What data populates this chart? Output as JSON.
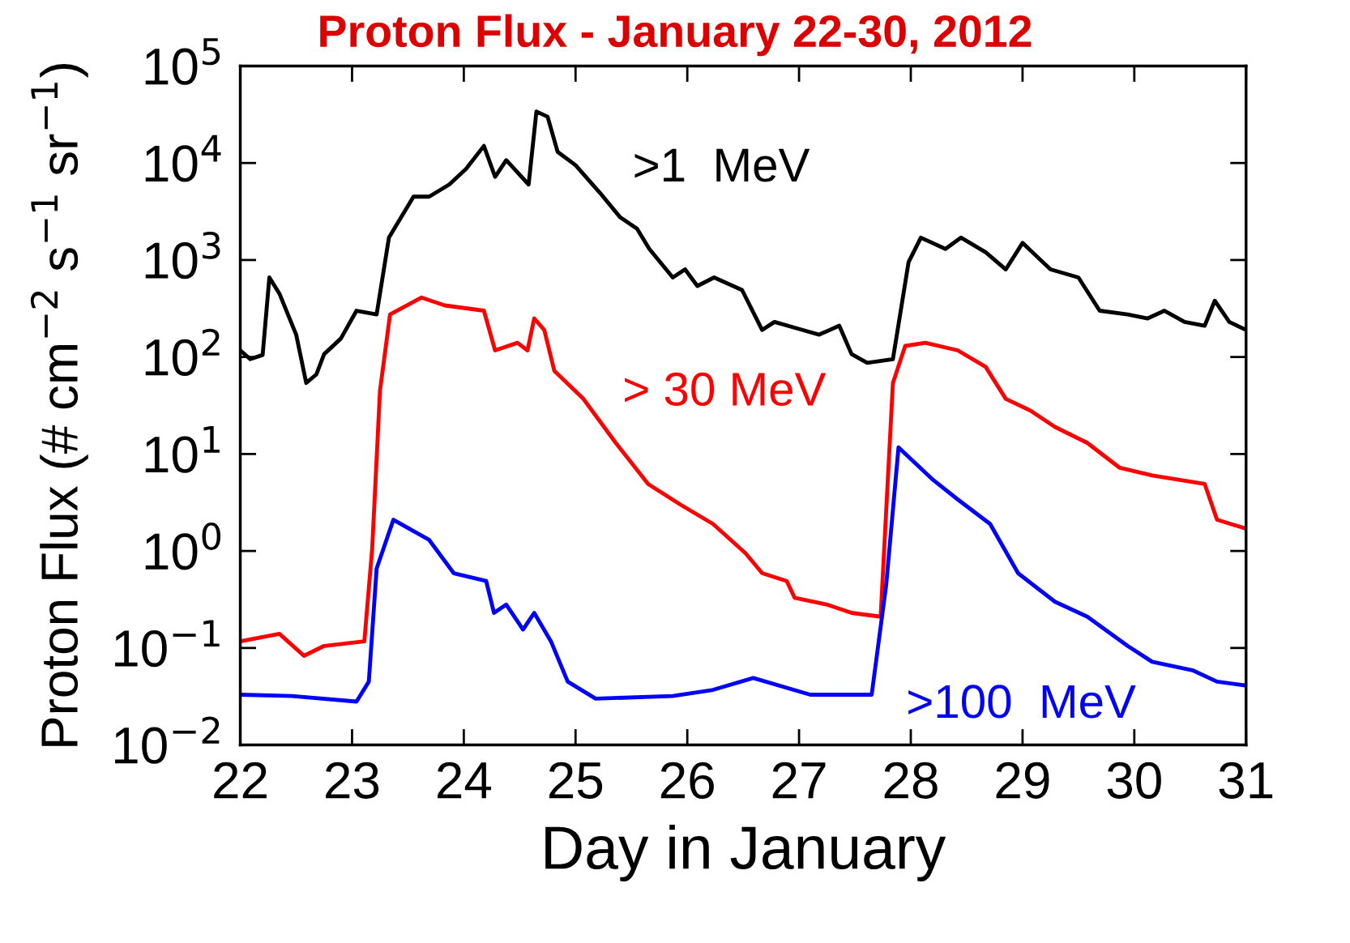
{
  "chart_data": {
    "type": "line",
    "title": "Proton Flux - January 22-30, 2012",
    "xlabel": "Day in January",
    "ylabel": "Proton Flux (# cm$^{−2}$ s$^{−1}$ sr$^{−1}$)",
    "log": "y",
    "grid": false,
    "legend": false,
    "marker": "none",
    "line_style": "solid",
    "xlim": [
      22,
      31
    ],
    "xticks": [
      22,
      23,
      24,
      25,
      26,
      27,
      28,
      29,
      30,
      31
    ],
    "ylim": [
      0.01,
      100000
    ],
    "yticks": [
      {
        "value": 0.01,
        "label": "10$^{−2}$"
      },
      {
        "value": 0.1,
        "label": "10$^{−1}$"
      },
      {
        "value": 1,
        "label": "10$^{0}$"
      },
      {
        "value": 10,
        "label": "10$^{1}$"
      },
      {
        "value": 100,
        "label": "10$^{2}$"
      },
      {
        "value": 1000,
        "label": "10$^{3}$"
      },
      {
        "value": 10000,
        "label": "10$^{4}$"
      },
      {
        "value": 100000,
        "label": "10$^{5}$"
      }
    ],
    "series": [
      {
        "name": ">1  MeV",
        "color": "#000000",
        "x": [
          22.0,
          22.09,
          22.2,
          22.26,
          22.35,
          22.5,
          22.59,
          22.68,
          22.75,
          22.9,
          23.04,
          23.22,
          23.33,
          23.55,
          23.69,
          23.87,
          24.02,
          24.18,
          24.28,
          24.38,
          24.58,
          24.65,
          24.75,
          24.84,
          25.0,
          25.22,
          25.4,
          25.55,
          25.66,
          25.87,
          25.98,
          26.09,
          26.24,
          26.49,
          26.67,
          26.78,
          27.03,
          27.18,
          27.36,
          27.47,
          27.61,
          27.84,
          27.98,
          28.09,
          28.31,
          28.45,
          28.67,
          28.85,
          29.0,
          29.25,
          29.5,
          29.69,
          29.94,
          30.12,
          30.27,
          30.45,
          30.63,
          30.72,
          30.85,
          31.0
        ],
        "values": [
          117,
          95,
          105,
          660,
          450,
          170,
          54,
          66,
          107,
          155,
          300,
          275,
          1700,
          4500,
          4500,
          6000,
          8700,
          15000,
          7200,
          10700,
          6000,
          34000,
          30000,
          13000,
          9500,
          4900,
          2750,
          2100,
          1300,
          660,
          800,
          540,
          660,
          490,
          190,
          230,
          190,
          170,
          210,
          107,
          87,
          95,
          950,
          1700,
          1300,
          1700,
          1200,
          800,
          1500,
          800,
          660,
          300,
          275,
          250,
          300,
          230,
          210,
          380,
          230,
          190
        ]
      },
      {
        "name": "> 30 MeV",
        "color": "#ff0000",
        "x": [
          22.0,
          22.35,
          22.57,
          22.75,
          23.11,
          23.18,
          23.25,
          23.34,
          23.62,
          23.83,
          24.18,
          24.28,
          24.48,
          24.57,
          24.63,
          24.72,
          24.81,
          25.07,
          25.36,
          25.65,
          25.94,
          26.23,
          26.52,
          26.67,
          26.89,
          26.96,
          27.25,
          27.47,
          27.73,
          27.84,
          27.95,
          28.13,
          28.42,
          28.67,
          28.85,
          29.07,
          29.29,
          29.58,
          29.87,
          30.16,
          30.63,
          30.74,
          31.0
        ],
        "values": [
          0.117,
          0.14,
          0.083,
          0.105,
          0.117,
          1.05,
          45,
          275,
          410,
          340,
          300,
          117,
          140,
          117,
          250,
          190,
          72,
          37,
          13,
          4.9,
          3.0,
          1.9,
          0.95,
          0.59,
          0.49,
          0.33,
          0.28,
          0.23,
          0.21,
          54,
          130,
          140,
          117,
          79,
          37,
          28,
          19,
          13,
          7.2,
          6.0,
          4.9,
          2.1,
          1.7
        ]
      },
      {
        "name": ">100  MeV",
        "color": "#0000ff",
        "x": [
          22.0,
          22.46,
          23.04,
          23.15,
          23.22,
          23.37,
          23.69,
          23.91,
          24.2,
          24.27,
          24.38,
          24.53,
          24.63,
          24.78,
          24.93,
          25.18,
          25.87,
          26.23,
          26.59,
          27.1,
          27.65,
          27.78,
          27.89,
          28.2,
          28.42,
          28.71,
          28.96,
          29.29,
          29.58,
          29.94,
          30.16,
          30.52,
          30.74,
          31.0
        ],
        "values": [
          0.033,
          0.032,
          0.028,
          0.045,
          0.66,
          2.1,
          1.3,
          0.59,
          0.49,
          0.23,
          0.28,
          0.155,
          0.23,
          0.117,
          0.045,
          0.03,
          0.032,
          0.037,
          0.049,
          0.033,
          0.033,
          0.45,
          11.7,
          5.4,
          3.4,
          1.9,
          0.59,
          0.3,
          0.21,
          0.105,
          0.072,
          0.059,
          0.045,
          0.041
        ]
      }
    ]
  }
}
